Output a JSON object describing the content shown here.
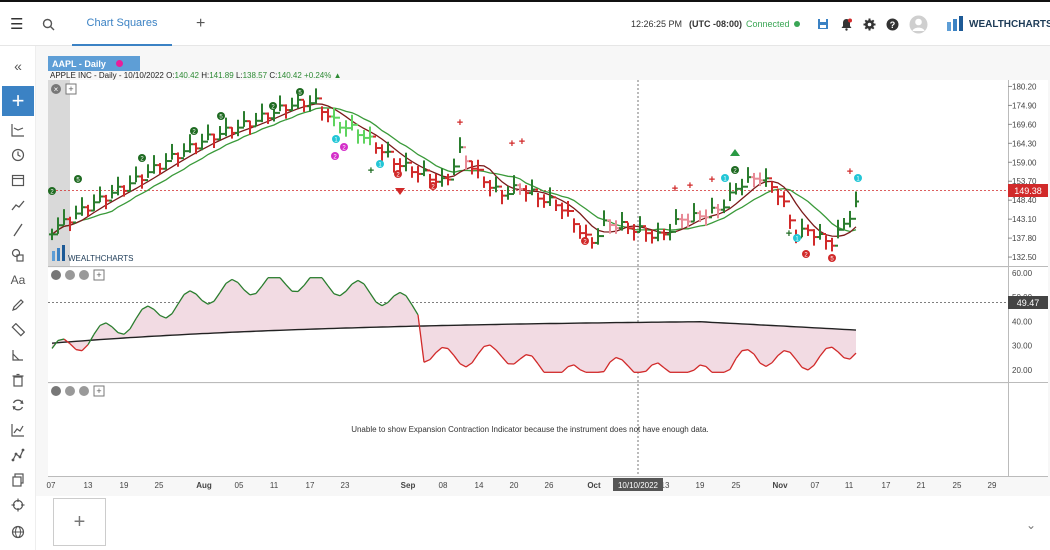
{
  "toolbar": {
    "tab_label": "Chart Squares",
    "time": "12:26:25 PM",
    "timezone": "(UTC -08:00)",
    "connection_status": "Connected",
    "brand": "WEALTHCHARTS"
  },
  "chart": {
    "symbol_badge": "AAPL - Daily",
    "quote_name": "APPLE INC - Daily - 10/10/2022",
    "quote_ohlc": {
      "o_label": "O:",
      "o": "140.42",
      "h_label": "H:",
      "h": "141.89",
      "l_label": "L:",
      "l": "138.57",
      "c_label": "C:",
      "c": "140.42",
      "change": "+0.24%"
    },
    "last_price_badge": "149.38",
    "osc_value_badge": "49.47",
    "crosshair_date": "10/10/2022",
    "watermark": "WEALTHCHARTS",
    "expansion_message": "Unable to show Expansion Contraction Indicator because the instrument does not have enough data.",
    "price_ticks": [
      "180.20",
      "174.90",
      "169.60",
      "164.30",
      "159.00",
      "153.70",
      "148.40",
      "143.10",
      "137.80",
      "132.50"
    ],
    "osc_ticks": [
      "60.00",
      "50.00",
      "40.00",
      "30.00",
      "20.00"
    ],
    "date_ticks": [
      "07",
      "13",
      "19",
      "25",
      "Aug",
      "05",
      "11",
      "17",
      "23",
      "Sep",
      "08",
      "14",
      "20",
      "26",
      "Oct",
      "13",
      "19",
      "25",
      "Nov",
      "07",
      "11",
      "17",
      "21",
      "25",
      "29"
    ],
    "colors": {
      "up": "#2a7d2e",
      "down": "#d12a2a",
      "pullback": "#e88a96",
      "fast_ma": "#7b1a1a",
      "slow_ma": "#3a9a3a",
      "accent": "#3b82c4"
    }
  },
  "chart_data": {
    "type": "bar",
    "title": "APPLE INC - Daily",
    "price_range": [
      130,
      182
    ],
    "oscillator_range": [
      15,
      62
    ],
    "last_price": 149.38,
    "oscillator_last": 49.47
  }
}
